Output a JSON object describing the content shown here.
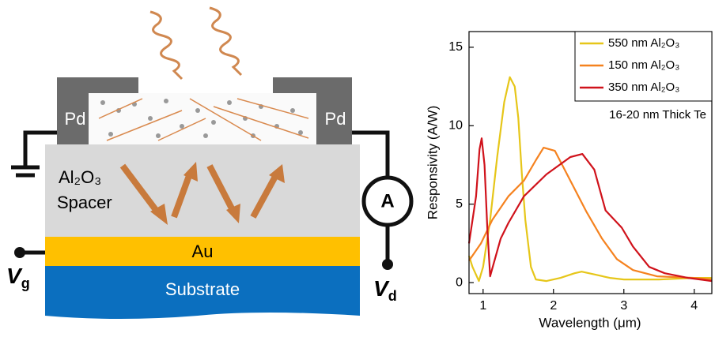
{
  "diagram": {
    "contact_left": "Pd",
    "contact_right": "Pd",
    "spacer_material": "Al₂O₃",
    "spacer_label": "Spacer",
    "metal": "Au",
    "substrate": "Substrate",
    "meter": "A",
    "gate_voltage": {
      "symbol": "V",
      "subscript": "g"
    },
    "drain_voltage": {
      "symbol": "V",
      "subscript": "d"
    }
  },
  "chart_data": {
    "type": "line",
    "xlabel": "Wavelength (μm)",
    "ylabel": "Responsivity (A/W)",
    "annotation": "16-20 nm Thick Te",
    "xlim": [
      0.8,
      4.25
    ],
    "xticks": [
      1,
      2,
      3,
      4
    ],
    "ylim": [
      -0.7,
      16
    ],
    "yticks": [
      0,
      5,
      10,
      15
    ],
    "legend": "upper right",
    "series": [
      {
        "name": "550 nm Al₂O₃",
        "color": "#e6c619",
        "x": [
          0.8,
          0.85,
          0.94,
          1.0,
          1.1,
          1.2,
          1.3,
          1.38,
          1.45,
          1.5,
          1.55,
          1.6,
          1.68,
          1.75,
          1.9,
          2.1,
          2.3,
          2.4,
          2.6,
          2.8,
          3.0,
          3.5,
          4.0,
          4.25
        ],
        "values": [
          1.7,
          1.0,
          0.1,
          1.0,
          4,
          8,
          11.5,
          13.1,
          12.5,
          10.5,
          7,
          4,
          1,
          0.2,
          0.1,
          0.3,
          0.6,
          0.7,
          0.5,
          0.3,
          0.2,
          0.2,
          0.3,
          0.3
        ]
      },
      {
        "name": "150 nm Al₂O₃",
        "color": "#f5821f",
        "x": [
          0.8,
          0.97,
          1.13,
          1.36,
          1.58,
          1.75,
          1.86,
          2.02,
          2.24,
          2.47,
          2.69,
          2.9,
          3.13,
          3.47,
          4.0,
          4.25
        ],
        "values": [
          1.4,
          2.5,
          4,
          5.5,
          6.5,
          7.8,
          8.6,
          8.4,
          6.5,
          4.5,
          2.8,
          1.5,
          0.8,
          0.4,
          0.3,
          0.2
        ]
      },
      {
        "name": "350 nm Al₂O₃",
        "color": "#d0121b",
        "x": [
          0.8,
          0.9,
          0.95,
          0.98,
          1.02,
          1.06,
          1.1,
          1.15,
          1.25,
          1.36,
          1.58,
          1.9,
          2.24,
          2.41,
          2.58,
          2.74,
          2.97,
          3.13,
          3.36,
          3.58,
          3.91,
          4.25
        ],
        "values": [
          2.5,
          5.5,
          8.5,
          9.2,
          7.5,
          3.5,
          0.4,
          1.2,
          2.8,
          3.8,
          5.5,
          6.9,
          8.0,
          8.2,
          7.2,
          4.6,
          3.5,
          2.3,
          1.0,
          0.6,
          0.3,
          0.1
        ]
      }
    ]
  }
}
